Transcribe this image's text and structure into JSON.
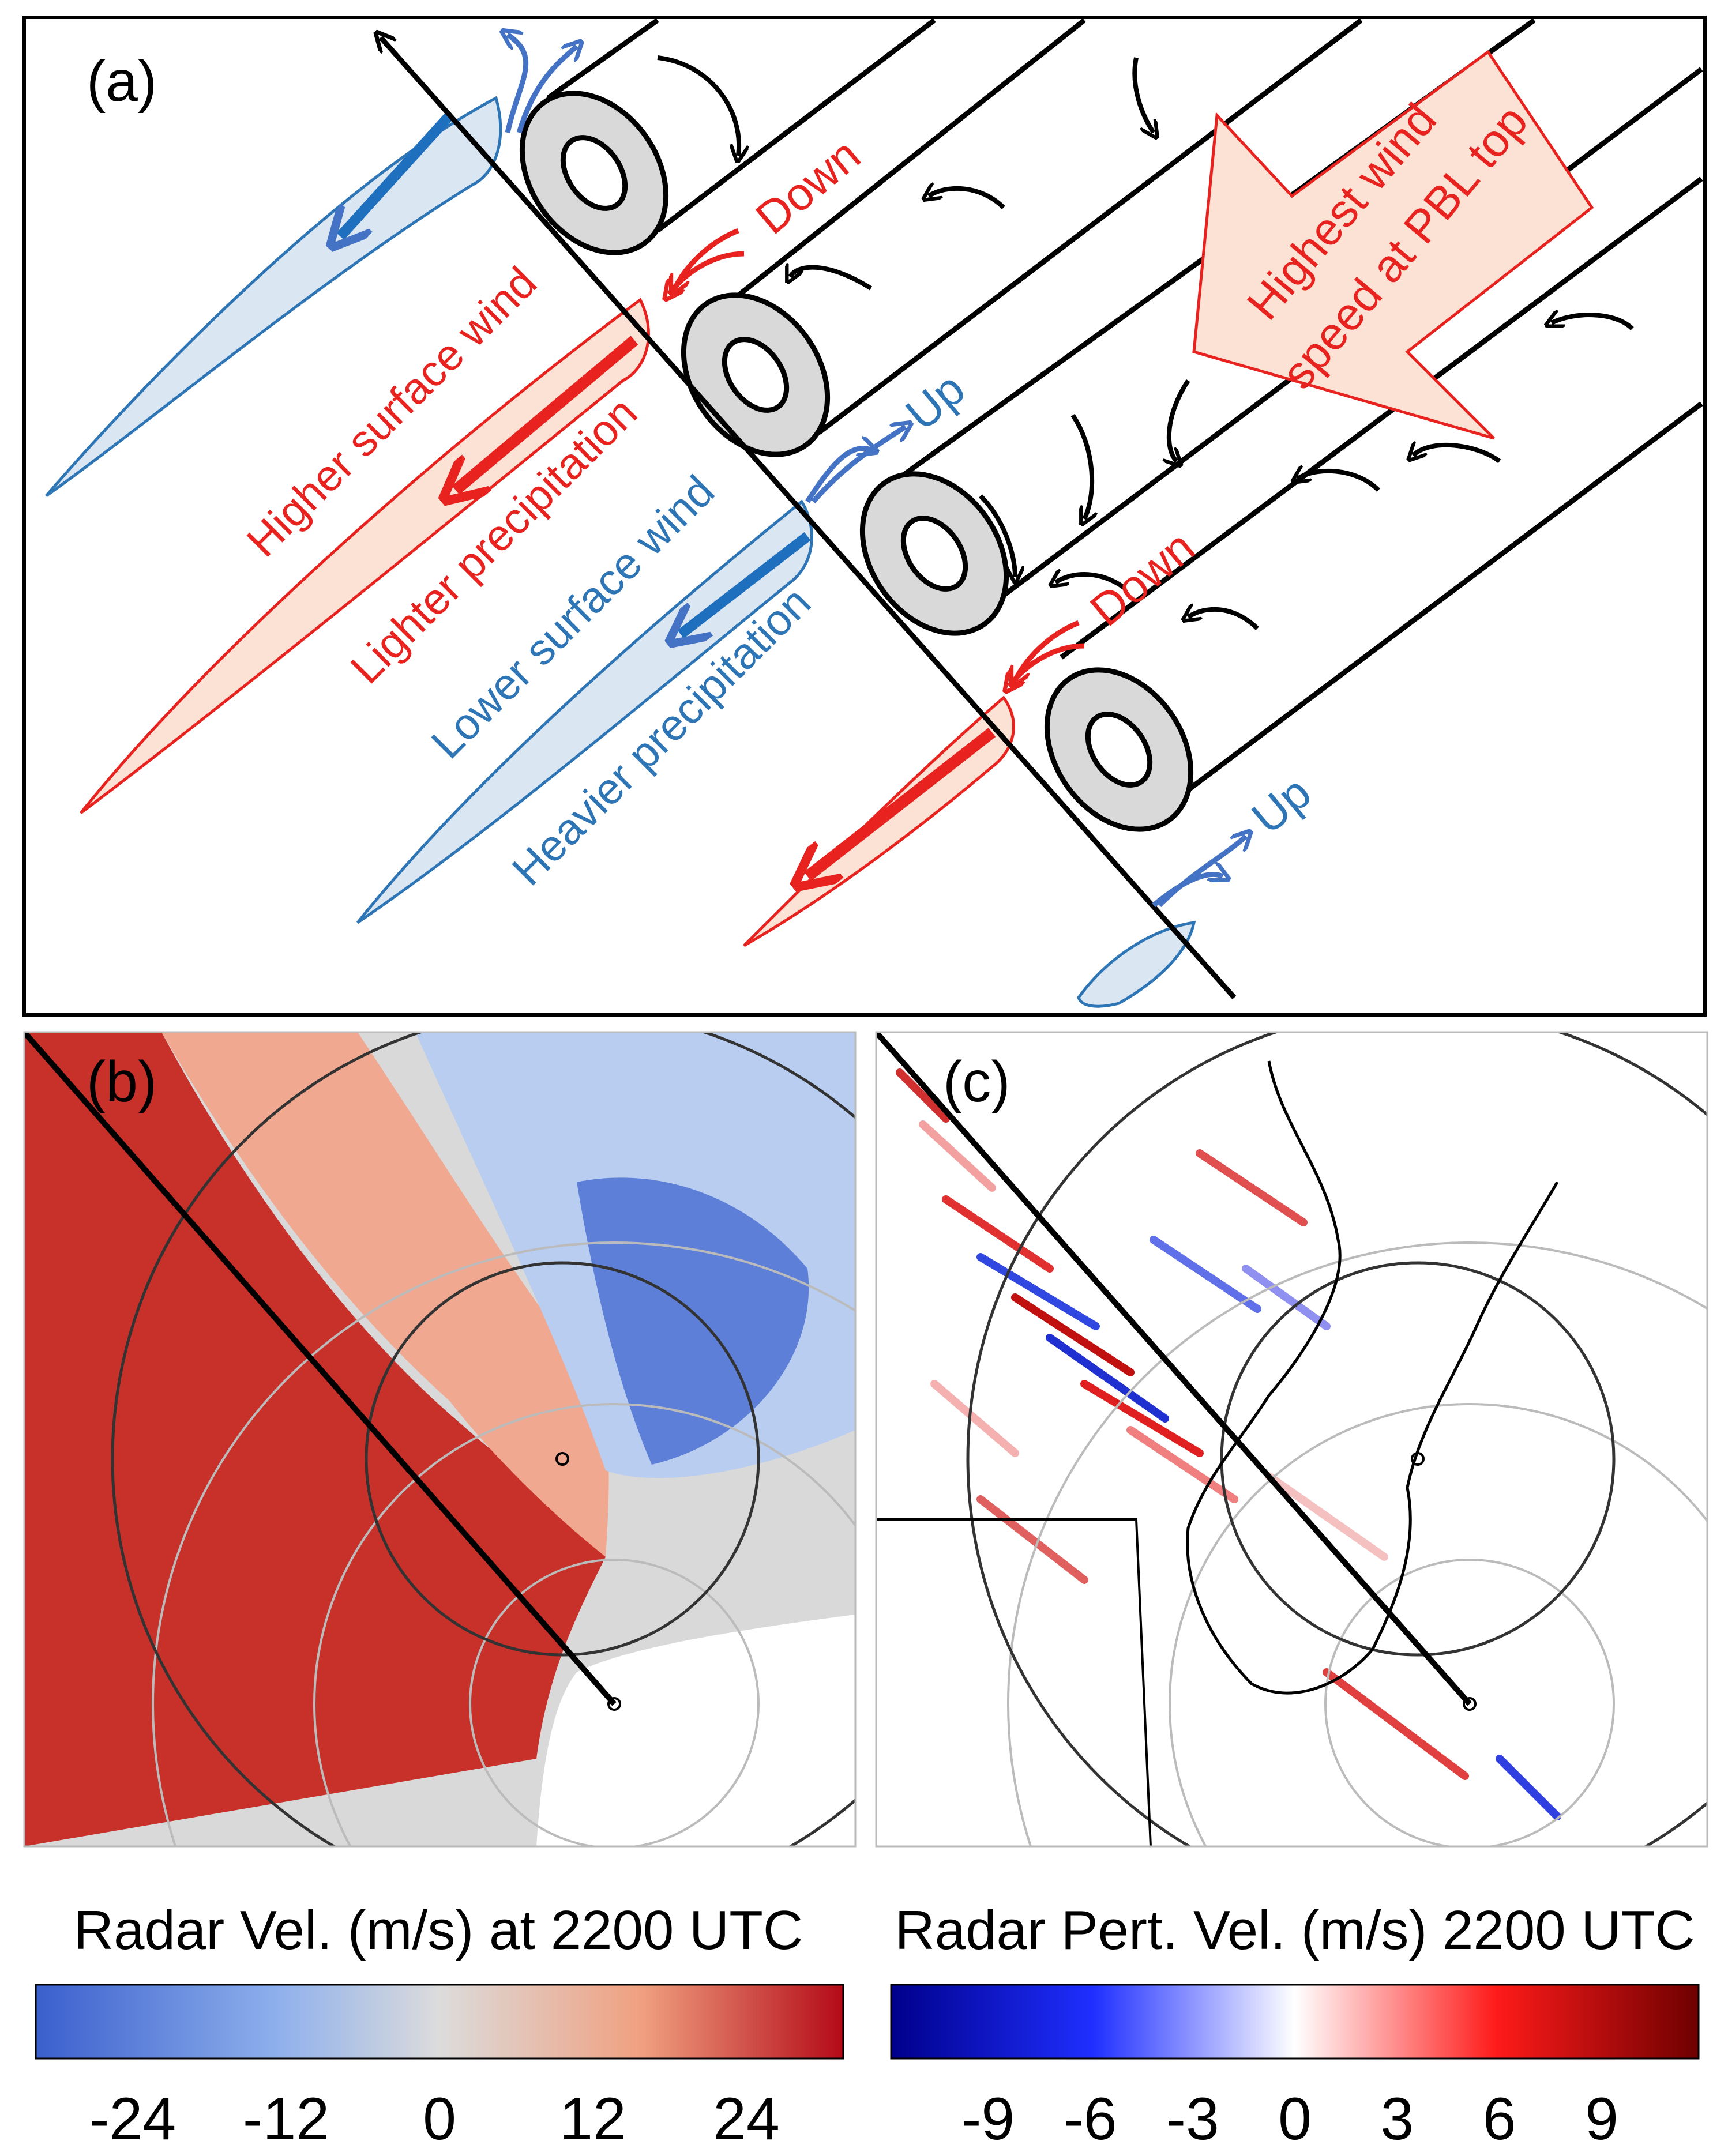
{
  "panel_a": {
    "label": "(a)",
    "wind_arrow_text": [
      "Highest wind",
      "speed at PBL top"
    ],
    "down_label": "Down",
    "up_label": "Up",
    "red_labels": [
      "Higher surface wind",
      "Lighter precipitation"
    ],
    "blue_labels": [
      "Lower surface wind",
      "Heavier precipitation"
    ],
    "colors": {
      "red": "#e8231f",
      "blue": "#2e75b6",
      "red_fill": "#fbe2d5",
      "blue_fill": "#dbe6f3",
      "roll_fill": "#d9d9d9"
    }
  },
  "panel_b": {
    "label": "(b)",
    "colorbar": {
      "title": "Radar Vel. (m/s) at 2200 UTC",
      "ticks": [
        "-24",
        "-12",
        "0",
        "12",
        "24"
      ],
      "colors": [
        "#3a5fcd",
        "#b7cdef",
        "#dcdcdc",
        "#f3a98e",
        "#c0141c"
      ]
    }
  },
  "panel_c": {
    "label": "(c)",
    "colorbar": {
      "title": "Radar Pert. Vel. (m/s) 2200 UTC",
      "ticks": [
        "-9",
        "-6",
        "-3",
        "0",
        "3",
        "6",
        "9"
      ],
      "colors": [
        "#00008b",
        "#2a3dff",
        "#ffffff",
        "#ff2020",
        "#7b0000"
      ]
    }
  }
}
